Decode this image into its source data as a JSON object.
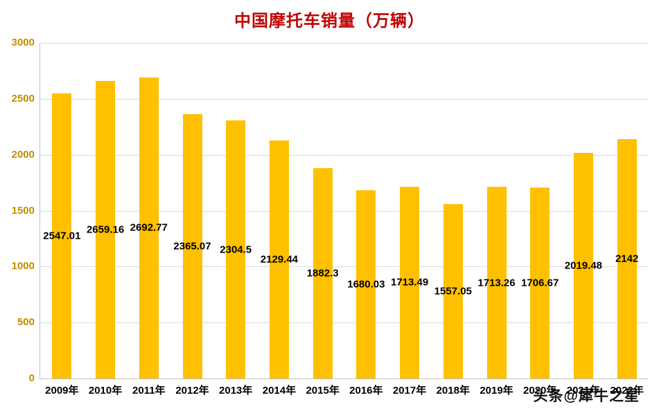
{
  "title": "中国摩托车销量（万辆）",
  "watermark": "头条@犀牛之星",
  "colors": {
    "title": "#c00000",
    "bar": "#ffc000",
    "ytick_label": "#bf8f00",
    "gridline": "#d9d9d9",
    "xtick_label": "#000000",
    "value_label": "#000000"
  },
  "chart_data": {
    "type": "bar",
    "title": "中国摩托车销量（万辆）",
    "categories": [
      "2009年",
      "2010年",
      "2011年",
      "2012年",
      "2013年",
      "2014年",
      "2015年",
      "2016年",
      "2017年",
      "2018年",
      "2019年",
      "2020年",
      "2021年",
      "2022年"
    ],
    "values": [
      2547.01,
      2659.16,
      2692.77,
      2365.07,
      2304.5,
      2129.44,
      1882.3,
      1680.03,
      1713.49,
      1557.05,
      1713.26,
      1706.67,
      2019.48,
      2142
    ],
    "value_labels": [
      "2547.01",
      "2659.16",
      "2692.77",
      "2365.07",
      "2304.5",
      "2129.44",
      "1882.3",
      "1680.03",
      "1713.49",
      "1557.05",
      "1713.26",
      "1706.67",
      "2019.48",
      "2142"
    ],
    "xlabel": "",
    "ylabel": "",
    "ylim": [
      0,
      3000
    ],
    "yticks": [
      0,
      500,
      1000,
      1500,
      2000,
      2500,
      3000
    ],
    "grid": true,
    "legend": "none",
    "bar_color": "#ffc000"
  }
}
